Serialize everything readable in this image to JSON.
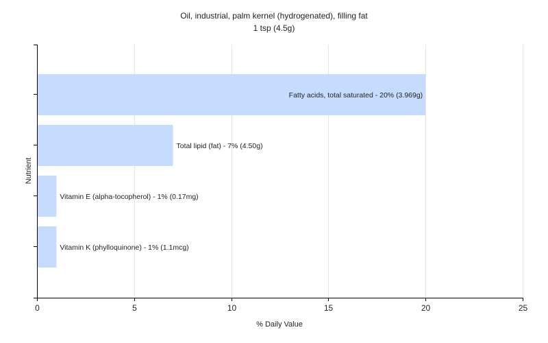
{
  "chart_data": {
    "type": "bar",
    "orientation": "horizontal",
    "title": "Oil, industrial, palm kernel (hydrogenated), filling fat",
    "subtitle": "1 tsp (4.5g)",
    "xlabel": "% Daily Value",
    "ylabel": "Nutrient",
    "xlim": [
      0,
      25
    ],
    "xticks": [
      "0",
      "5",
      "10",
      "15",
      "20",
      "25"
    ],
    "grid": true,
    "legend": "none",
    "bar_color": "#c6dcff",
    "bars": [
      {
        "label": "Fatty acids, total saturated - 20% (3.969g)",
        "value": 20
      },
      {
        "label": "Total lipid (fat) - 7% (4.50g)",
        "value": 7
      },
      {
        "label": "Vitamin E (alpha-tocopherol) - 1% (0.17mg)",
        "value": 1
      },
      {
        "label": "Vitamin K (phylloquinone) - 1% (1.1mcg)",
        "value": 1
      }
    ]
  }
}
